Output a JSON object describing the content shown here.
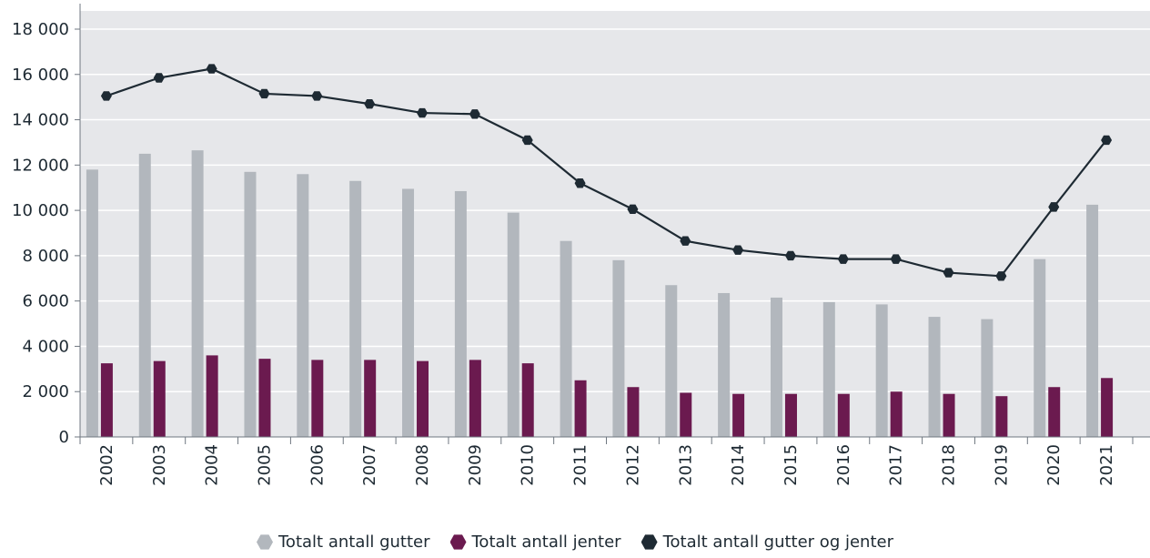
{
  "chart_data": {
    "type": "bar",
    "categories": [
      "2002",
      "2003",
      "2004",
      "2005",
      "2006",
      "2007",
      "2008",
      "2009",
      "2010",
      "2011",
      "2012",
      "2013",
      "2014",
      "2015",
      "2016",
      "2017",
      "2018",
      "2019",
      "2020",
      "2021"
    ],
    "series": [
      {
        "name": "Totalt antall gutter",
        "type": "bar",
        "color": "#b2b7bd",
        "values": [
          11800,
          12500,
          12650,
          11700,
          11600,
          11300,
          10950,
          10850,
          9900,
          8650,
          7800,
          6700,
          6350,
          6150,
          5950,
          5850,
          5300,
          5200,
          7850,
          10250
        ]
      },
      {
        "name": "Totalt antall jenter",
        "type": "bar",
        "color": "#6b1a4f",
        "values": [
          3250,
          3350,
          3600,
          3450,
          3400,
          3400,
          3350,
          3400,
          3250,
          2500,
          2200,
          1950,
          1900,
          1900,
          1900,
          2000,
          1900,
          1800,
          2200,
          2600
        ]
      },
      {
        "name": "Totalt antall gutter og jenter",
        "type": "line",
        "color": "#1e2a33",
        "values": [
          15050,
          15850,
          16250,
          15150,
          15050,
          14700,
          14300,
          14250,
          13100,
          11200,
          10050,
          8650,
          8250,
          8000,
          7850,
          7850,
          7250,
          7100,
          10150,
          13100
        ]
      }
    ],
    "y_ticks": [
      "0",
      "2 000",
      "4 000",
      "6 000",
      "8 000",
      "10 000",
      "12 000",
      "14 000",
      "16 000",
      "18 000"
    ],
    "ylim": [
      0,
      18000
    ],
    "grid": true,
    "legend_position": "bottom",
    "title": "",
    "xlabel": "",
    "ylabel": ""
  }
}
